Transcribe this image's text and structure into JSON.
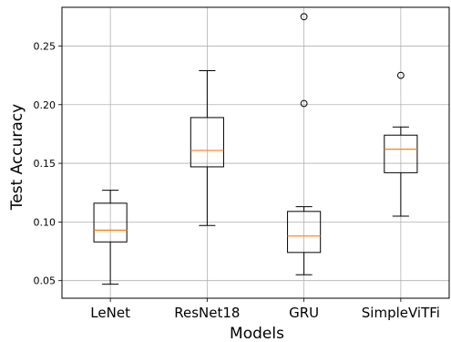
{
  "chart_data": {
    "type": "box",
    "title": "",
    "xlabel": "Models",
    "ylabel": "Test Accuracy",
    "ylim": [
      0.035,
      0.283
    ],
    "yticks": [
      0.05,
      0.1,
      0.15,
      0.2,
      0.25
    ],
    "ytick_labels": [
      "0.05",
      "0.10",
      "0.15",
      "0.20",
      "0.25"
    ],
    "grid": true,
    "categories": [
      "LeNet",
      "ResNet18",
      "GRU",
      "SimpleViTFi"
    ],
    "boxes": [
      {
        "name": "LeNet",
        "whisker_low": 0.047,
        "q1": 0.083,
        "median": 0.093,
        "q3": 0.116,
        "whisker_high": 0.127,
        "outliers": []
      },
      {
        "name": "ResNet18",
        "whisker_low": 0.097,
        "q1": 0.147,
        "median": 0.161,
        "q3": 0.189,
        "whisker_high": 0.229,
        "outliers": []
      },
      {
        "name": "GRU",
        "whisker_low": 0.055,
        "q1": 0.074,
        "median": 0.088,
        "q3": 0.109,
        "whisker_high": 0.113,
        "outliers": [
          0.201,
          0.275
        ]
      },
      {
        "name": "SimpleViTFi",
        "whisker_low": 0.105,
        "q1": 0.142,
        "median": 0.162,
        "q3": 0.174,
        "whisker_high": 0.181,
        "outliers": [
          0.225
        ]
      }
    ],
    "colors": {
      "box": "#000000",
      "median": "#ff7f0e",
      "grid": "#b0b0b0"
    }
  }
}
